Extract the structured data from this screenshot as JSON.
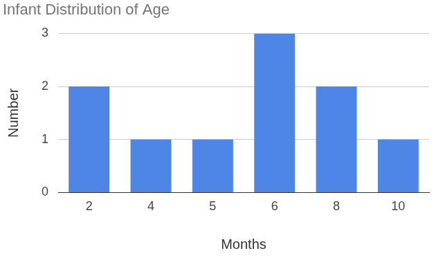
{
  "chart_data": {
    "type": "bar",
    "title": "Infant Distribution of Age",
    "x_label": "Months",
    "y_label": "Number",
    "categories": [
      "2",
      "4",
      "5",
      "6",
      "8",
      "10"
    ],
    "values": [
      2,
      1,
      1,
      3,
      2,
      1
    ],
    "color": "#4e86e8",
    "ylim": [
      0,
      3
    ],
    "yticks": [
      0,
      1,
      2,
      3
    ],
    "grid": true
  }
}
